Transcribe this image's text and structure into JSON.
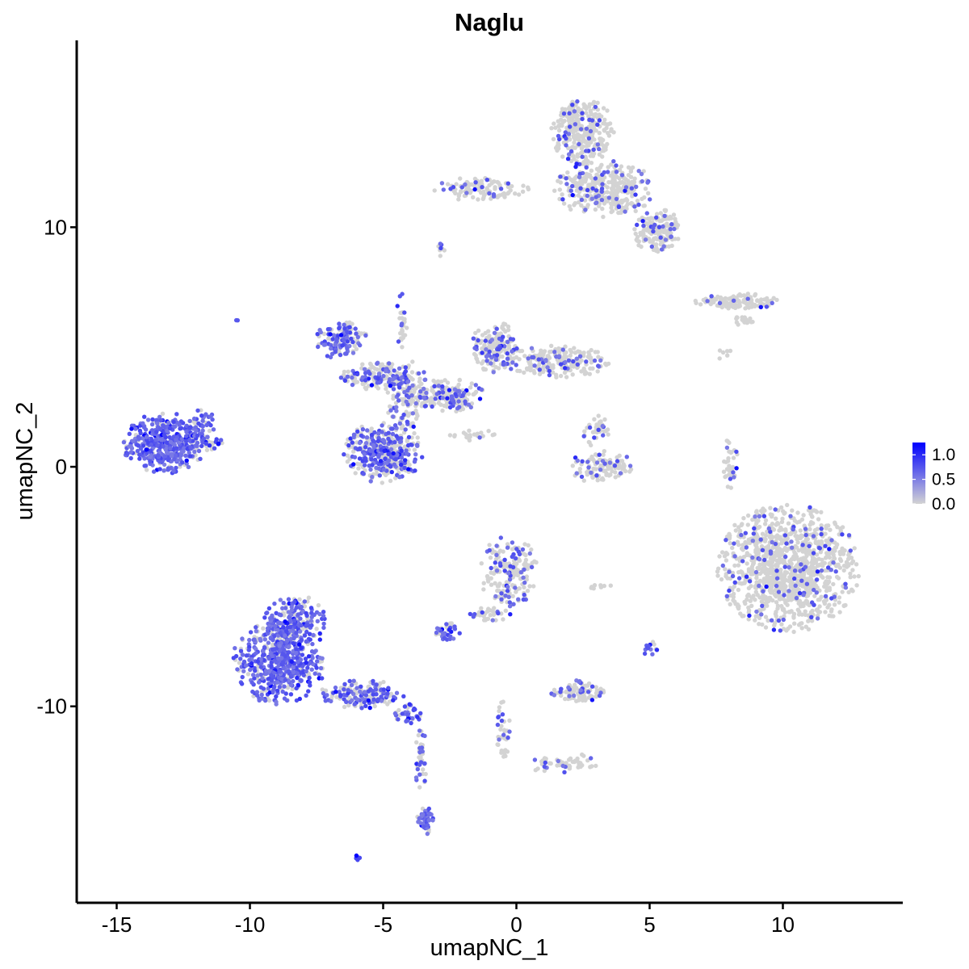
{
  "chart_data": {
    "type": "scatter",
    "title": "Naglu",
    "xlabel": "umapNC_1",
    "ylabel": "umapNC_2",
    "xlim": [
      -16.5,
      14.5
    ],
    "ylim": [
      -18.2,
      17.8
    ],
    "x_ticks": [
      -15,
      -10,
      -5,
      0,
      5,
      10
    ],
    "x_tick_labels": [
      "-15",
      "-10",
      "-5",
      "0",
      "5",
      "10"
    ],
    "y_ticks": [
      -10,
      0,
      10
    ],
    "y_tick_labels": [
      "-10",
      "0",
      "10"
    ],
    "grid": false,
    "legend": {
      "placement": "right",
      "type": "colorbar",
      "ticks": [
        0.0,
        0.5,
        1.0
      ],
      "tick_labels": [
        "0.0",
        "0.5",
        "1.0"
      ],
      "range": [
        0,
        1.25
      ],
      "low_color": "#d3d3d3",
      "high_color": "#0000ff"
    },
    "clusters": [
      {
        "cx": -13.2,
        "cy": 1.0,
        "rx": 1.6,
        "ry": 1.3,
        "n": 420,
        "pos_frac": 0.85
      },
      {
        "cx": -11.8,
        "cy": 1.8,
        "rx": 0.5,
        "ry": 0.7,
        "n": 40,
        "pos_frac": 0.7
      },
      {
        "cx": -11.5,
        "cy": 1.0,
        "rx": 0.6,
        "ry": 0.35,
        "n": 30,
        "pos_frac": 0.5
      },
      {
        "cx": -8.9,
        "cy": -8.2,
        "rx": 1.8,
        "ry": 1.8,
        "n": 520,
        "pos_frac": 0.78
      },
      {
        "cx": -8.3,
        "cy": -6.5,
        "rx": 1.2,
        "ry": 1.2,
        "n": 200,
        "pos_frac": 0.7
      },
      {
        "cx": -5.8,
        "cy": -9.5,
        "rx": 1.6,
        "ry": 0.6,
        "n": 160,
        "pos_frac": 0.5
      },
      {
        "cx": -4.0,
        "cy": -10.3,
        "rx": 0.6,
        "ry": 0.4,
        "n": 40,
        "pos_frac": 0.6
      },
      {
        "cx": -3.6,
        "cy": -12.2,
        "rx": 0.25,
        "ry": 1.4,
        "n": 40,
        "pos_frac": 0.4
      },
      {
        "cx": -3.4,
        "cy": -14.8,
        "rx": 0.35,
        "ry": 0.6,
        "n": 50,
        "pos_frac": 0.8
      },
      {
        "cx": -6.0,
        "cy": -16.3,
        "rx": 0.15,
        "ry": 0.15,
        "n": 5,
        "pos_frac": 0.6
      },
      {
        "cx": -5.0,
        "cy": 0.6,
        "rx": 1.5,
        "ry": 1.3,
        "n": 380,
        "pos_frac": 0.48
      },
      {
        "cx": -6.6,
        "cy": 5.3,
        "rx": 1.0,
        "ry": 0.8,
        "n": 140,
        "pos_frac": 0.55
      },
      {
        "cx": -5.3,
        "cy": 3.8,
        "rx": 1.3,
        "ry": 0.6,
        "n": 140,
        "pos_frac": 0.32
      },
      {
        "cx": -4.1,
        "cy": 3.0,
        "rx": 0.8,
        "ry": 1.6,
        "n": 150,
        "pos_frac": 0.3
      },
      {
        "cx": -4.3,
        "cy": 6.0,
        "rx": 0.2,
        "ry": 1.3,
        "n": 30,
        "pos_frac": 0.3
      },
      {
        "cx": -2.5,
        "cy": 3.0,
        "rx": 1.3,
        "ry": 0.7,
        "n": 160,
        "pos_frac": 0.3
      },
      {
        "cx": -0.8,
        "cy": 5.0,
        "rx": 0.9,
        "ry": 1.1,
        "n": 180,
        "pos_frac": 0.28
      },
      {
        "cx": 1.5,
        "cy": 4.4,
        "rx": 2.0,
        "ry": 0.7,
        "n": 220,
        "pos_frac": 0.18
      },
      {
        "cx": -1.7,
        "cy": 1.3,
        "rx": 0.9,
        "ry": 0.3,
        "n": 20,
        "pos_frac": 0.3
      },
      {
        "cx": 2.5,
        "cy": 14.0,
        "rx": 1.2,
        "ry": 1.4,
        "n": 300,
        "pos_frac": 0.12
      },
      {
        "cx": 3.3,
        "cy": 11.6,
        "rx": 1.9,
        "ry": 1.2,
        "n": 340,
        "pos_frac": 0.13
      },
      {
        "cx": 5.3,
        "cy": 9.8,
        "rx": 0.9,
        "ry": 1.0,
        "n": 170,
        "pos_frac": 0.14
      },
      {
        "cx": -1.3,
        "cy": 11.6,
        "rx": 1.8,
        "ry": 0.5,
        "n": 110,
        "pos_frac": 0.12
      },
      {
        "cx": -2.8,
        "cy": 9.2,
        "rx": 0.2,
        "ry": 0.5,
        "n": 10,
        "pos_frac": 0.3
      },
      {
        "cx": 8.3,
        "cy": 6.9,
        "rx": 1.6,
        "ry": 0.35,
        "n": 110,
        "pos_frac": 0.08
      },
      {
        "cx": 8.5,
        "cy": 6.1,
        "rx": 0.4,
        "ry": 0.3,
        "n": 16,
        "pos_frac": 0.1
      },
      {
        "cx": 7.8,
        "cy": 4.7,
        "rx": 0.3,
        "ry": 0.3,
        "n": 6,
        "pos_frac": 0.0
      },
      {
        "cx": 3.2,
        "cy": 0.0,
        "rx": 1.2,
        "ry": 0.7,
        "n": 110,
        "pos_frac": 0.15
      },
      {
        "cx": 3.0,
        "cy": 1.5,
        "rx": 0.5,
        "ry": 0.7,
        "n": 40,
        "pos_frac": 0.15
      },
      {
        "cx": 8.0,
        "cy": 0.2,
        "rx": 0.3,
        "ry": 1.1,
        "n": 40,
        "pos_frac": 0.3
      },
      {
        "cx": 10.2,
        "cy": -4.2,
        "rx": 2.7,
        "ry": 2.7,
        "n": 1100,
        "pos_frac": 0.09
      },
      {
        "cx": -0.3,
        "cy": -4.5,
        "rx": 1.1,
        "ry": 1.7,
        "n": 190,
        "pos_frac": 0.27
      },
      {
        "cx": -2.6,
        "cy": -6.9,
        "rx": 0.5,
        "ry": 0.4,
        "n": 40,
        "pos_frac": 0.55
      },
      {
        "cx": -1.2,
        "cy": -6.2,
        "rx": 0.9,
        "ry": 0.35,
        "n": 30,
        "pos_frac": 0.2
      },
      {
        "cx": 2.3,
        "cy": -9.4,
        "rx": 1.0,
        "ry": 0.5,
        "n": 100,
        "pos_frac": 0.28
      },
      {
        "cx": 5.0,
        "cy": -7.6,
        "rx": 0.3,
        "ry": 0.4,
        "n": 14,
        "pos_frac": 0.55
      },
      {
        "cx": -0.5,
        "cy": -10.8,
        "rx": 0.3,
        "ry": 1.4,
        "n": 40,
        "pos_frac": 0.2
      },
      {
        "cx": 1.8,
        "cy": -12.4,
        "rx": 1.3,
        "ry": 0.5,
        "n": 50,
        "pos_frac": 0.2
      },
      {
        "cx": 3.2,
        "cy": -5.0,
        "rx": 0.5,
        "ry": 0.15,
        "n": 8,
        "pos_frac": 0.0
      },
      {
        "cx": -10.5,
        "cy": 6.1,
        "rx": 0.1,
        "ry": 0.1,
        "n": 2,
        "pos_frac": 1.0
      }
    ]
  }
}
